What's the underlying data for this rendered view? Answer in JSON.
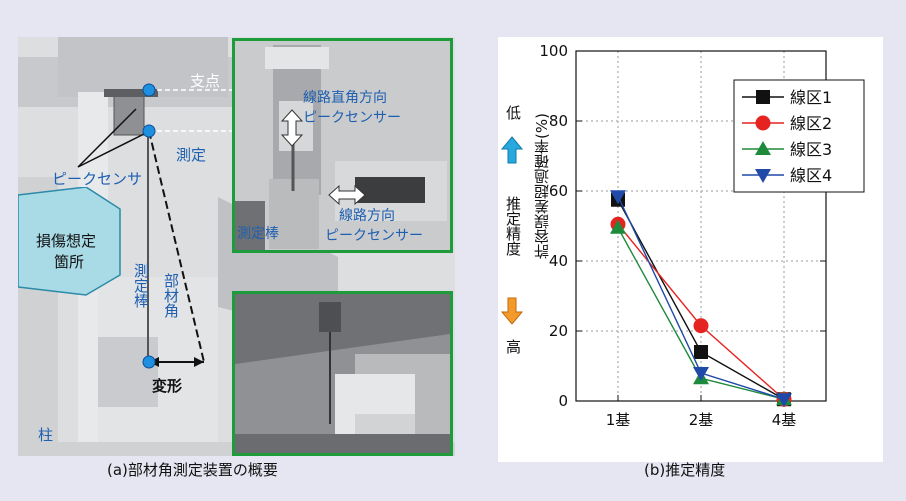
{
  "left_figure": {
    "caption": "(a)部材角測定装置の概要",
    "labels": {
      "support_point": "支点",
      "measure": "測定",
      "peak_sensor": "ピークセンサ",
      "damage_area_1": "損傷想定",
      "damage_area_2": "箇所",
      "measuring_rod": "測定棒",
      "member_angle": "部材角",
      "deformation": "変形",
      "column": "柱"
    },
    "inset_top": {
      "perp_sensor_1": "線路直角方向",
      "perp_sensor_2": "ピークセンサー",
      "rod": "測定棒",
      "track_sensor_1": "線路方向",
      "track_sensor_2": "ピークセンサー"
    }
  },
  "right_figure": {
    "caption": "(b)推定精度",
    "side_labels": {
      "low": "低",
      "accuracy": "推定精度",
      "high": "高"
    }
  },
  "chart_data": {
    "type": "line",
    "ylabel": "許容誤差超過確率(%)",
    "xlabel": "",
    "categories": [
      "1基",
      "2基",
      "4基"
    ],
    "ylim": [
      0,
      100
    ],
    "yticks": [
      0,
      20,
      40,
      60,
      80,
      100
    ],
    "grid": true,
    "legend_position": "top-right",
    "series": [
      {
        "name": "線区1",
        "color": "#111111",
        "marker": "square",
        "values": [
          57.5,
          14,
          0.5
        ]
      },
      {
        "name": "線区2",
        "color": "#e52421",
        "marker": "circle",
        "values": [
          50.5,
          21.5,
          0.5
        ]
      },
      {
        "name": "線区3",
        "color": "#1e8a3c",
        "marker": "triangle-up",
        "values": [
          49.5,
          6.5,
          0.5
        ]
      },
      {
        "name": "線区4",
        "color": "#1f4aa8",
        "marker": "triangle-down",
        "values": [
          58.5,
          8,
          0.5
        ]
      }
    ]
  }
}
